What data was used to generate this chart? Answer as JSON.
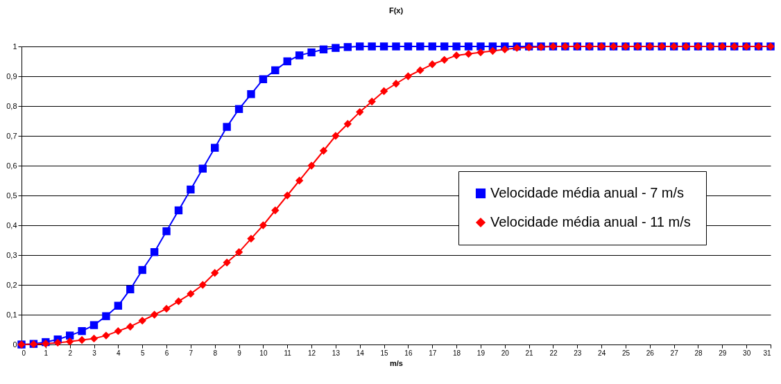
{
  "chart_data": {
    "type": "line",
    "title": "F(x)",
    "xlabel": "m/s",
    "x": [
      0,
      0.5,
      1,
      1.5,
      2,
      2.5,
      3,
      3.5,
      4,
      4.5,
      5,
      5.5,
      6,
      6.5,
      7,
      7.5,
      8,
      8.5,
      9,
      9.5,
      10,
      10.5,
      11,
      11.5,
      12,
      12.5,
      13,
      13.5,
      14,
      14.5,
      15,
      15.5,
      16,
      16.5,
      17,
      17.5,
      18,
      18.5,
      19,
      19.5,
      20,
      20.5,
      21,
      21.5,
      22,
      22.5,
      23,
      23.5,
      24,
      24.5,
      25,
      25.5,
      26,
      26.5,
      27,
      27.5,
      28,
      28.5,
      29,
      29.5,
      30,
      30.5,
      31
    ],
    "xlim": [
      0,
      31
    ],
    "xticks": [
      0,
      1,
      2,
      3,
      4,
      5,
      6,
      7,
      8,
      9,
      10,
      11,
      12,
      13,
      14,
      15,
      16,
      17,
      18,
      19,
      20,
      21,
      22,
      23,
      24,
      25,
      26,
      27,
      28,
      29,
      30,
      31
    ],
    "ylim": [
      0,
      1
    ],
    "yticks": [
      0,
      {
        "value": 0.1,
        "label": "0,1"
      },
      {
        "value": 0.2,
        "label": "0,2"
      },
      {
        "value": 0.3,
        "label": "0,3"
      },
      {
        "value": 0.4,
        "label": "0,4"
      },
      {
        "value": 0.5,
        "label": "0,5"
      },
      {
        "value": 0.6,
        "label": "0,6"
      },
      {
        "value": 0.7,
        "label": "0,7"
      },
      {
        "value": 0.8,
        "label": "0,8"
      },
      {
        "value": 0.9,
        "label": "0,9"
      },
      1
    ],
    "grid": "y",
    "legend": "right",
    "series": [
      {
        "name": "Velocidade média anual - 7 m/s",
        "color": "#0000ff",
        "marker": "square",
        "values": [
          0,
          0.002,
          0.008,
          0.017,
          0.03,
          0.045,
          0.065,
          0.095,
          0.13,
          0.185,
          0.25,
          0.31,
          0.38,
          0.45,
          0.52,
          0.59,
          0.66,
          0.73,
          0.79,
          0.84,
          0.89,
          0.92,
          0.95,
          0.97,
          0.98,
          0.99,
          0.995,
          0.998,
          1,
          1,
          1,
          1,
          1,
          1,
          1,
          1,
          1,
          1,
          1,
          1,
          1,
          1,
          1,
          1,
          1,
          1,
          1,
          1,
          1,
          1,
          1,
          1,
          1,
          1,
          1,
          1,
          1,
          1,
          1,
          1,
          1,
          1,
          1
        ]
      },
      {
        "name": "Velocidade média anual - 11 m/s",
        "color": "#ff0000",
        "marker": "diamond",
        "values": [
          0,
          0.001,
          0.003,
          0.006,
          0.01,
          0.015,
          0.02,
          0.03,
          0.045,
          0.06,
          0.08,
          0.1,
          0.12,
          0.145,
          0.17,
          0.2,
          0.24,
          0.275,
          0.31,
          0.355,
          0.4,
          0.45,
          0.5,
          0.55,
          0.6,
          0.65,
          0.7,
          0.74,
          0.78,
          0.815,
          0.85,
          0.875,
          0.9,
          0.92,
          0.94,
          0.955,
          0.97,
          0.975,
          0.98,
          0.985,
          0.99,
          0.995,
          0.997,
          0.998,
          1,
          1,
          1,
          1,
          1,
          1,
          1,
          1,
          1,
          1,
          1,
          1,
          1,
          1,
          1,
          1,
          1,
          1,
          1
        ]
      }
    ]
  }
}
